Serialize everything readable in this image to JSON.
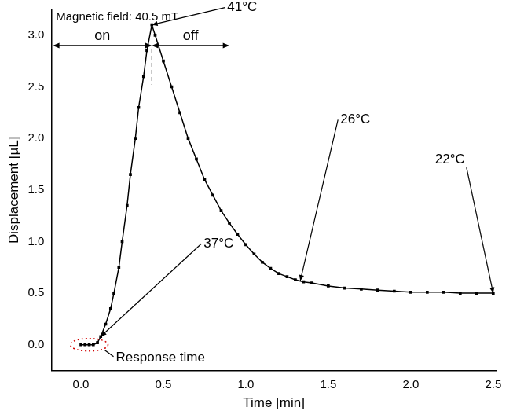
{
  "chart_data": {
    "type": "line",
    "title": "Magnetic field: 40.5 mT",
    "x_label": "Time [min]",
    "y_label": "Displacement [µL]",
    "x": [
      0,
      0.025,
      0.05,
      0.075,
      0.1,
      0.12,
      0.15,
      0.18,
      0.2,
      0.23,
      0.25,
      0.28,
      0.3,
      0.33,
      0.35,
      0.38,
      0.4,
      0.43,
      0.45,
      0.5,
      0.55,
      0.6,
      0.65,
      0.7,
      0.75,
      0.8,
      0.85,
      0.9,
      0.95,
      1.0,
      1.05,
      1.1,
      1.15,
      1.2,
      1.25,
      1.3,
      1.35,
      1.4,
      1.5,
      1.6,
      1.7,
      1.8,
      1.9,
      2.0,
      2.1,
      2.2,
      2.3,
      2.4,
      2.5
    ],
    "values": [
      0,
      0,
      0,
      0,
      0.02,
      0.08,
      0.2,
      0.35,
      0.5,
      0.75,
      1.0,
      1.35,
      1.65,
      2.0,
      2.3,
      2.6,
      2.85,
      3.1,
      3.0,
      2.75,
      2.5,
      2.25,
      2.0,
      1.8,
      1.6,
      1.45,
      1.3,
      1.18,
      1.07,
      0.97,
      0.88,
      0.8,
      0.74,
      0.69,
      0.66,
      0.63,
      0.61,
      0.6,
      0.57,
      0.55,
      0.54,
      0.53,
      0.52,
      0.51,
      0.51,
      0.51,
      0.5,
      0.5,
      0.5
    ],
    "color": "#000000",
    "marker": "square",
    "line_style": "solid",
    "xlim": [
      -0.18,
      2.52
    ],
    "xticks": [
      {
        "value": 0,
        "label": "0.0"
      },
      0.5,
      {
        "value": 1,
        "label": "1.0"
      },
      1.5,
      {
        "value": 2,
        "label": "2.0"
      },
      2.5
    ],
    "ylim": [
      -0.25,
      3.25
    ],
    "yticks": [
      {
        "value": 0,
        "label": "0.0"
      },
      0.5,
      {
        "value": 1,
        "label": "1.0"
      },
      1.5,
      {
        "value": 2,
        "label": "2.0"
      },
      2.5,
      {
        "value": 3,
        "label": "3.0"
      }
    ],
    "grid": false,
    "field_segments": [
      {
        "text": "on",
        "from": -0.17,
        "to": 0.43
      },
      {
        "text": "off",
        "from": 0.43,
        "to": 0.9
      }
    ],
    "field_segments_y": 2.9,
    "annotations": [
      {
        "text": "41°C",
        "x": 0.43,
        "y": 3.1
      },
      {
        "text": "37°C",
        "x": 0.12,
        "y": 0.08
      },
      {
        "text": "26°C",
        "x": 1.33,
        "y": 0.62
      },
      {
        "text": "22°C",
        "x": 2.5,
        "y": 0.5
      }
    ],
    "response_time": {
      "text": "Response time",
      "x": 0.05,
      "y": 0
    }
  }
}
